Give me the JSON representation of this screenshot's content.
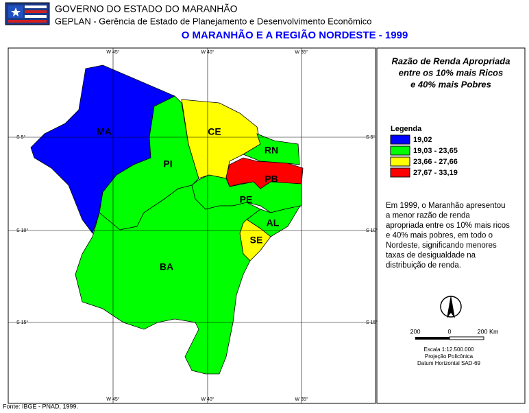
{
  "header": {
    "org": "GOVERNO DO ESTADO DO MARANHÃO",
    "dept": "GEPLAN - Gerência de Estado de Planejamento e Desenvolvimento Econômico",
    "title": "O MARANHÃO E A REGIÃO NORDESTE - 1999"
  },
  "map": {
    "graticule": {
      "longitudes": [
        "W 45°",
        "W 40°",
        "W 35°"
      ],
      "latitudes": [
        "S 5°",
        "S 10°",
        "S 15°"
      ]
    },
    "states": [
      {
        "label": "MA",
        "color": "#0000ff"
      },
      {
        "label": "PI",
        "color": "#00ff00"
      },
      {
        "label": "CE",
        "color": "#ffff00"
      },
      {
        "label": "RN",
        "color": "#00ff00"
      },
      {
        "label": "PB",
        "color": "#ff0000"
      },
      {
        "label": "PE",
        "color": "#00ff00"
      },
      {
        "label": "AL",
        "color": "#00ff00"
      },
      {
        "label": "SE",
        "color": "#ffff00"
      },
      {
        "label": "BA",
        "color": "#00ff00"
      }
    ]
  },
  "panel": {
    "title": [
      "Razão de Renda Apropriada",
      "entre os 10% mais Ricos",
      "e 40% mais Pobres"
    ],
    "legend": {
      "title": "Legenda",
      "items": [
        {
          "label": "19,02",
          "color": "#0000ff"
        },
        {
          "label": "19,03 - 23,65",
          "color": "#00ff00"
        },
        {
          "label": "23,66 - 27,66",
          "color": "#ffff00"
        },
        {
          "label": "27,67 - 33,19",
          "color": "#ff0000"
        }
      ]
    },
    "description": [
      "Em 1999, o Maranhão apresentou",
      "a menor razão de renda",
      "apropriada entre os 10% mais ricos",
      "e 40% mais pobres, em todo o",
      "Nordeste, significando menores",
      "taxas de desigualdade na",
      "distribuição de renda."
    ],
    "scale": {
      "labels": [
        "200",
        "0",
        "200 Km"
      ],
      "notes": [
        "Escala 1:12.500.000",
        "Projeção Policônica",
        "Datum Horizontal SAD-69"
      ]
    }
  },
  "footer": {
    "source": "Fonte: IBGE - PNAD, 1999."
  }
}
